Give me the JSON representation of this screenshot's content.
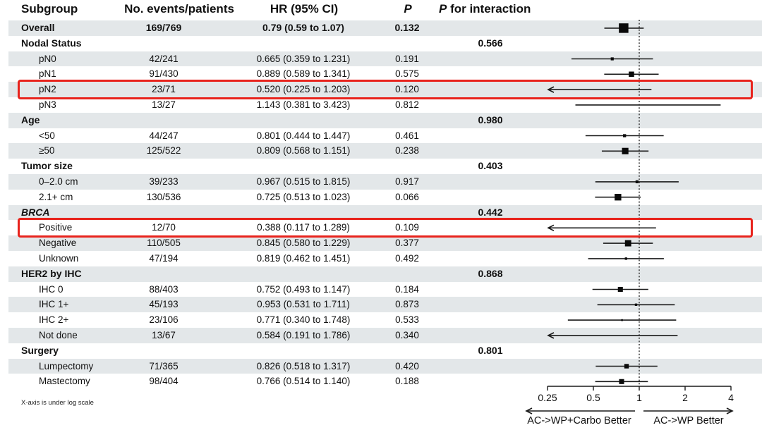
{
  "header": {
    "subgroup": "Subgroup",
    "events": "No. events/patients",
    "hr_ci": "HR (95% CI)",
    "p": "P",
    "p_interaction_p": "P",
    "p_interaction_rest": " for interaction"
  },
  "footnote": "X-axis is under log scale",
  "colors": {
    "stripe": "#e3e7e9",
    "highlight": "#e8231c",
    "marker": "#0a0a0a",
    "line": "#1a1a1a"
  },
  "rows": [
    {
      "label": "Overall",
      "indent": false,
      "bold": true,
      "italic": false,
      "events": "169/769",
      "hr_ci": "0.79 (0.59 to 1.07)",
      "p": "0.132",
      "p_interaction": "",
      "highlight": false
    },
    {
      "label": "Nodal Status",
      "indent": false,
      "bold": true,
      "italic": false,
      "events": "",
      "hr_ci": "",
      "p": "",
      "p_interaction": "0.566",
      "highlight": false
    },
    {
      "label": "pN0",
      "indent": true,
      "bold": false,
      "italic": false,
      "events": "42/241",
      "hr_ci": "0.665 (0.359 to 1.231)",
      "p": "0.191",
      "p_interaction": "",
      "highlight": false
    },
    {
      "label": "pN1",
      "indent": true,
      "bold": false,
      "italic": false,
      "events": "91/430",
      "hr_ci": "0.889 (0.589 to 1.341)",
      "p": "0.575",
      "p_interaction": "",
      "highlight": false
    },
    {
      "label": "pN2",
      "indent": true,
      "bold": false,
      "italic": false,
      "events": "23/71",
      "hr_ci": "0.520 (0.225 to 1.203)",
      "p": "0.120",
      "p_interaction": "",
      "highlight": true
    },
    {
      "label": "pN3",
      "indent": true,
      "bold": false,
      "italic": false,
      "events": "13/27",
      "hr_ci": "1.143 (0.381 to 3.423)",
      "p": "0.812",
      "p_interaction": "",
      "highlight": false
    },
    {
      "label": "Age",
      "indent": false,
      "bold": true,
      "italic": false,
      "events": "",
      "hr_ci": "",
      "p": "",
      "p_interaction": "0.980",
      "highlight": false
    },
    {
      "label": "<50",
      "indent": true,
      "bold": false,
      "italic": false,
      "events": "44/247",
      "hr_ci": "0.801 (0.444 to 1.447)",
      "p": "0.461",
      "p_interaction": "",
      "highlight": false
    },
    {
      "label": "≥50",
      "indent": true,
      "bold": false,
      "italic": false,
      "events": "125/522",
      "hr_ci": "0.809 (0.568 to 1.151)",
      "p": "0.238",
      "p_interaction": "",
      "highlight": false
    },
    {
      "label": "Tumor size",
      "indent": false,
      "bold": true,
      "italic": false,
      "events": "",
      "hr_ci": "",
      "p": "",
      "p_interaction": "0.403",
      "highlight": false
    },
    {
      "label": "0–2.0 cm",
      "indent": true,
      "bold": false,
      "italic": false,
      "events": "39/233",
      "hr_ci": "0.967 (0.515 to 1.815)",
      "p": "0.917",
      "p_interaction": "",
      "highlight": false
    },
    {
      "label": "2.1+ cm",
      "indent": true,
      "bold": false,
      "italic": false,
      "events": "130/536",
      "hr_ci": "0.725 (0.513 to 1.023)",
      "p": "0.066",
      "p_interaction": "",
      "highlight": false
    },
    {
      "label": "BRCA",
      "indent": false,
      "bold": true,
      "italic": true,
      "events": "",
      "hr_ci": "",
      "p": "",
      "p_interaction": "0.442",
      "highlight": false
    },
    {
      "label": "Positive",
      "indent": true,
      "bold": false,
      "italic": false,
      "events": "12/70",
      "hr_ci": "0.388 (0.117 to 1.289)",
      "p": "0.109",
      "p_interaction": "",
      "highlight": true
    },
    {
      "label": "Negative",
      "indent": true,
      "bold": false,
      "italic": false,
      "events": "110/505",
      "hr_ci": "0.845 (0.580 to 1.229)",
      "p": "0.377",
      "p_interaction": "",
      "highlight": false
    },
    {
      "label": "Unknown",
      "indent": true,
      "bold": false,
      "italic": false,
      "events": "47/194",
      "hr_ci": "0.819 (0.462 to 1.451)",
      "p": "0.492",
      "p_interaction": "",
      "highlight": false
    },
    {
      "label": "HER2 by IHC",
      "indent": false,
      "bold": true,
      "italic": false,
      "events": "",
      "hr_ci": "",
      "p": "",
      "p_interaction": "0.868",
      "highlight": false
    },
    {
      "label": "IHC 0",
      "indent": true,
      "bold": false,
      "italic": false,
      "events": "88/403",
      "hr_ci": "0.752 (0.493 to 1.147)",
      "p": "0.184",
      "p_interaction": "",
      "highlight": false
    },
    {
      "label": "IHC 1+",
      "indent": true,
      "bold": false,
      "italic": false,
      "events": "45/193",
      "hr_ci": "0.953 (0.531 to 1.711)",
      "p": "0.873",
      "p_interaction": "",
      "highlight": false
    },
    {
      "label": "IHC 2+",
      "indent": true,
      "bold": false,
      "italic": false,
      "events": "23/106",
      "hr_ci": "0.771 (0.340 to 1.748)",
      "p": "0.533",
      "p_interaction": "",
      "highlight": false
    },
    {
      "label": "Not done",
      "indent": true,
      "bold": false,
      "italic": false,
      "events": "13/67",
      "hr_ci": "0.584 (0.191 to 1.786)",
      "p": "0.340",
      "p_interaction": "",
      "highlight": false
    },
    {
      "label": "Surgery",
      "indent": false,
      "bold": true,
      "italic": false,
      "events": "",
      "hr_ci": "",
      "p": "",
      "p_interaction": "0.801",
      "highlight": false
    },
    {
      "label": "Lumpectomy",
      "indent": true,
      "bold": false,
      "italic": false,
      "events": "71/365",
      "hr_ci": "0.826 (0.518 to 1.317)",
      "p": "0.420",
      "p_interaction": "",
      "highlight": false
    },
    {
      "label": "Mastectomy",
      "indent": true,
      "bold": false,
      "italic": false,
      "events": "98/404",
      "hr_ci": "0.766 (0.514 to 1.140)",
      "p": "0.188",
      "p_interaction": "",
      "highlight": false
    }
  ],
  "chart_data": {
    "type": "forest",
    "x_scale": "log",
    "x_range": [
      0.25,
      4
    ],
    "x_ticks": [
      "0.25",
      "0.5",
      "1",
      "2",
      "4"
    ],
    "reference_line": 1,
    "left_direction_label": "AC->WP+Carbo Better",
    "right_direction_label": "AC->WP Better",
    "clip_note": "CIs extending below 0.25 are drawn as left arrows",
    "points": [
      {
        "row": 0,
        "label": "Overall",
        "hr": 0.79,
        "lo": 0.59,
        "hi": 1.07,
        "patients": 769
      },
      {
        "row": 2,
        "label": "pN0",
        "hr": 0.665,
        "lo": 0.359,
        "hi": 1.231,
        "patients": 241
      },
      {
        "row": 3,
        "label": "pN1",
        "hr": 0.889,
        "lo": 0.589,
        "hi": 1.341,
        "patients": 430
      },
      {
        "row": 4,
        "label": "pN2",
        "hr": 0.52,
        "lo": 0.225,
        "hi": 1.203,
        "patients": 71
      },
      {
        "row": 5,
        "label": "pN3",
        "hr": 1.143,
        "lo": 0.381,
        "hi": 3.423,
        "patients": 27
      },
      {
        "row": 7,
        "label": "<50",
        "hr": 0.801,
        "lo": 0.444,
        "hi": 1.447,
        "patients": 247
      },
      {
        "row": 8,
        "label": "≥50",
        "hr": 0.809,
        "lo": 0.568,
        "hi": 1.151,
        "patients": 522
      },
      {
        "row": 10,
        "label": "0–2.0 cm",
        "hr": 0.967,
        "lo": 0.515,
        "hi": 1.815,
        "patients": 233
      },
      {
        "row": 11,
        "label": "2.1+ cm",
        "hr": 0.725,
        "lo": 0.513,
        "hi": 1.023,
        "patients": 536
      },
      {
        "row": 13,
        "label": "Positive",
        "hr": 0.388,
        "lo": 0.117,
        "hi": 1.289,
        "patients": 70
      },
      {
        "row": 14,
        "label": "Negative",
        "hr": 0.845,
        "lo": 0.58,
        "hi": 1.229,
        "patients": 505
      },
      {
        "row": 15,
        "label": "Unknown",
        "hr": 0.819,
        "lo": 0.462,
        "hi": 1.451,
        "patients": 194
      },
      {
        "row": 17,
        "label": "IHC 0",
        "hr": 0.752,
        "lo": 0.493,
        "hi": 1.147,
        "patients": 403
      },
      {
        "row": 18,
        "label": "IHC 1+",
        "hr": 0.953,
        "lo": 0.531,
        "hi": 1.711,
        "patients": 193
      },
      {
        "row": 19,
        "label": "IHC 2+",
        "hr": 0.771,
        "lo": 0.34,
        "hi": 1.748,
        "patients": 106
      },
      {
        "row": 20,
        "label": "Not done",
        "hr": 0.584,
        "lo": 0.191,
        "hi": 1.786,
        "patients": 67
      },
      {
        "row": 22,
        "label": "Lumpectomy",
        "hr": 0.826,
        "lo": 0.518,
        "hi": 1.317,
        "patients": 365
      },
      {
        "row": 23,
        "label": "Mastectomy",
        "hr": 0.766,
        "lo": 0.514,
        "hi": 1.14,
        "patients": 404
      }
    ]
  }
}
